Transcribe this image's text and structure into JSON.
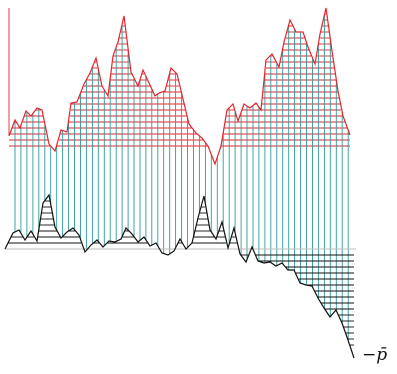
{
  "colors": {
    "upper_lines": "#e3262d",
    "vertical_lines": "#2e9a9a",
    "lower_lines": "#111111",
    "baseline": "#bcbcbc"
  },
  "label": "−p̄"
}
